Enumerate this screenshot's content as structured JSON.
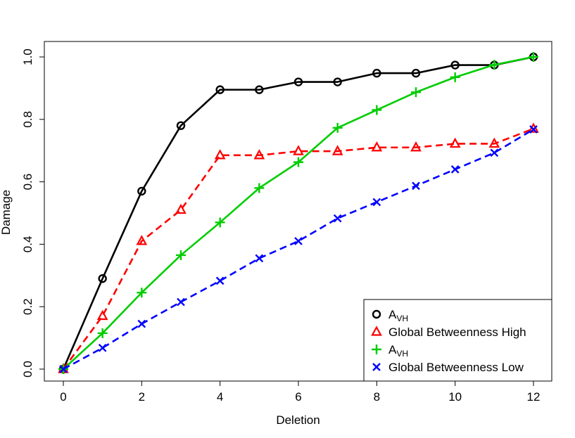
{
  "chart_data": {
    "type": "line",
    "xlabel": "Deletion",
    "ylabel": "Damage",
    "xlim": [
      0,
      12
    ],
    "ylim": [
      0,
      1
    ],
    "x_ticks": [
      "0",
      "2",
      "4",
      "6",
      "8",
      "10",
      "12"
    ],
    "y_ticks": [
      "0.0",
      "0.2",
      "0.4",
      "0.6",
      "0.8",
      "1.0"
    ],
    "x": [
      0,
      1,
      2,
      3,
      4,
      5,
      6,
      7,
      8,
      9,
      10,
      11,
      12
    ],
    "grid": false,
    "legend_position": "bottom-right",
    "series": [
      {
        "name": "A",
        "name_sub": "VH",
        "values": [
          0,
          0.29,
          0.57,
          0.78,
          0.895,
          0.895,
          0.92,
          0.92,
          0.948,
          0.948,
          0.974,
          0.974,
          1.0
        ],
        "color": "#000000",
        "dash": "solid",
        "marker": "circle"
      },
      {
        "name": "Global Betweenness High",
        "values": [
          0,
          0.17,
          0.41,
          0.51,
          0.685,
          0.685,
          0.698,
          0.698,
          0.71,
          0.71,
          0.722,
          0.722,
          0.77
        ],
        "color": "#ff0000",
        "dash": "dashed",
        "marker": "triangle"
      },
      {
        "name": "A",
        "name_sub": "VH",
        "values": [
          0,
          0.115,
          0.245,
          0.365,
          0.47,
          0.58,
          0.663,
          0.773,
          0.83,
          0.887,
          0.935,
          0.975,
          1.0
        ],
        "color": "#00cd00",
        "dash": "solid",
        "marker": "plus"
      },
      {
        "name": "Global Betweenness Low",
        "values": [
          0,
          0.068,
          0.145,
          0.215,
          0.283,
          0.355,
          0.41,
          0.483,
          0.535,
          0.587,
          0.64,
          0.693,
          0.768
        ],
        "color": "#0000ff",
        "dash": "dashed",
        "marker": "cross"
      }
    ]
  }
}
